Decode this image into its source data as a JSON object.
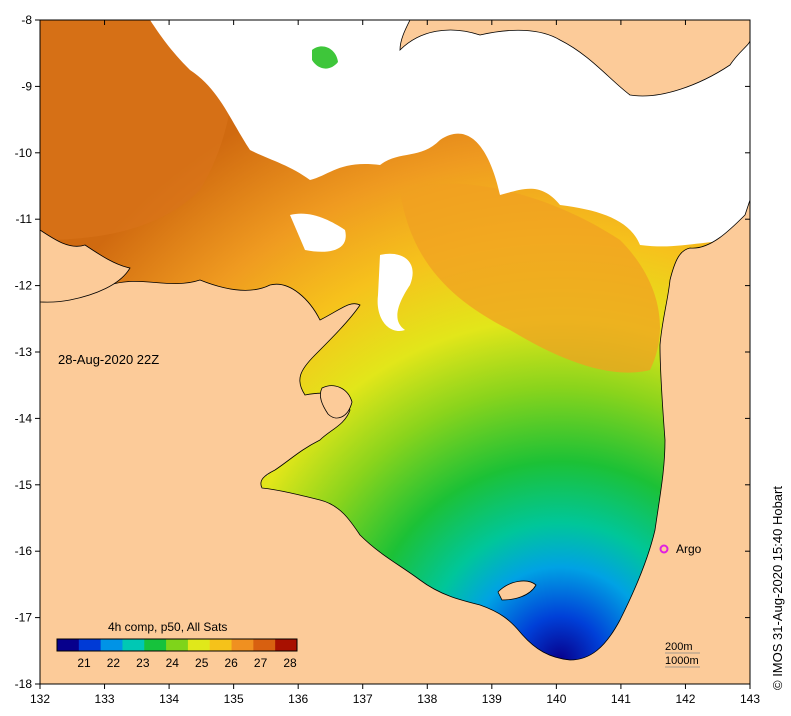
{
  "map": {
    "timestamp": "28-Aug-2020 22Z",
    "credit": "© IMOS 31-Aug-2020 15:40 Hobart",
    "argo_label": "Argo",
    "lon_ticks": [
      "132",
      "133",
      "134",
      "135",
      "136",
      "137",
      "138",
      "139",
      "140",
      "141",
      "142",
      "143"
    ],
    "lat_ticks": [
      "-8",
      "-9",
      "-10",
      "-11",
      "-12",
      "-13",
      "-14",
      "-15",
      "-16",
      "-17",
      "-18"
    ],
    "depth_contours": [
      "200m",
      "1000m"
    ],
    "colors": {
      "land": "#fccb99",
      "no_data": "#ffffff",
      "argo_marker": "#e020e0"
    }
  },
  "colorbar": {
    "title": "4h comp, p50, All Sats",
    "ticks": [
      "21",
      "22",
      "23",
      "24",
      "25",
      "26",
      "27",
      "28"
    ],
    "colors": [
      "#07008c",
      "#003ad6",
      "#0093e6",
      "#00c8b4",
      "#16c23c",
      "#7fd41a",
      "#e0e81a",
      "#f5c21a",
      "#f09020",
      "#d86010",
      "#a81000"
    ]
  }
}
